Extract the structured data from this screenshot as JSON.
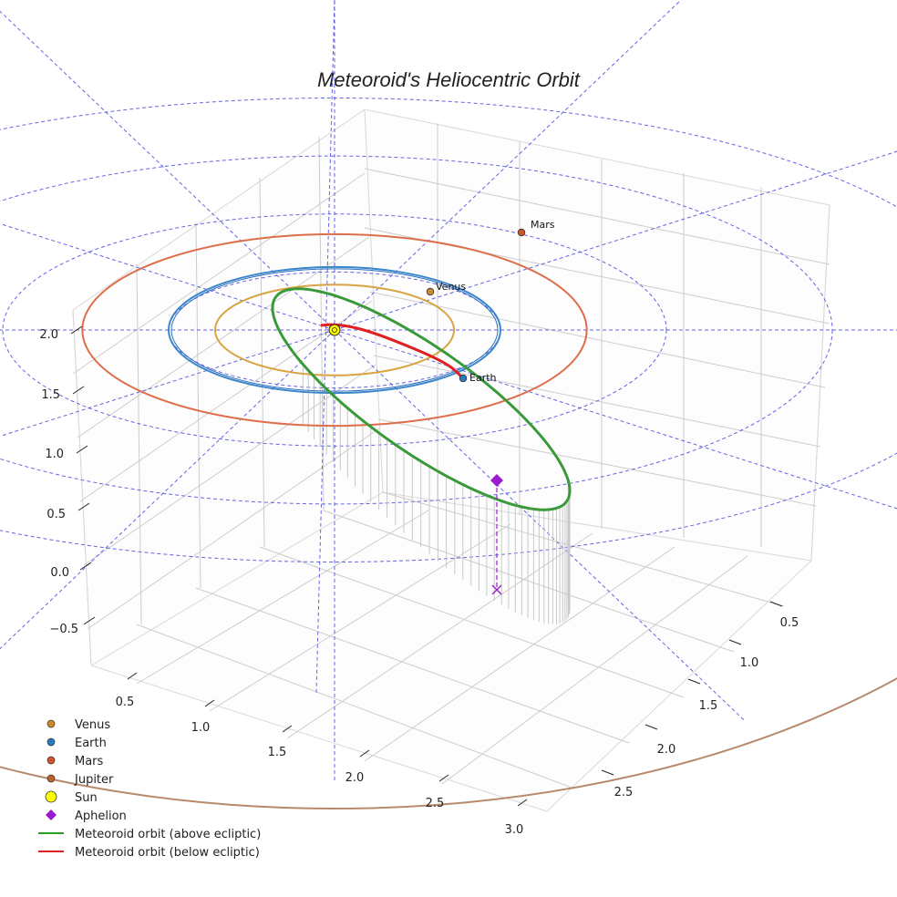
{
  "chart_data": {
    "type": "3d-orbit",
    "title": "Meteoroid's Heliocentric Orbit",
    "x_ticks": [
      "0.5",
      "1.0",
      "1.5",
      "2.0",
      "2.5",
      "3.0"
    ],
    "y_ticks": [
      "0.5",
      "1.0",
      "1.5",
      "2.0",
      "2.5"
    ],
    "z_ticks": [
      "2.0",
      "1.5",
      "1.0",
      "0.5",
      "0.0",
      "−0.5"
    ],
    "orbits": [
      {
        "name": "Venus",
        "radius_au": 0.72,
        "color": "#d9a441"
      },
      {
        "name": "Earth",
        "radius_au": 1.0,
        "color": "#3a86c8"
      },
      {
        "name": "Mars",
        "radius_au": 1.52,
        "color": "#de6d4a"
      },
      {
        "name": "Jupiter",
        "radius_au": 5.2,
        "color": "#b88a6b"
      }
    ],
    "planet_labels": [
      "Venus",
      "Earth",
      "Mars"
    ],
    "meteoroid": {
      "perihelion_au": 0.2,
      "aphelion_au": 2.5,
      "above_color": "#3a9a3a",
      "below_color": "#e02020"
    },
    "legend": [
      {
        "label": "Venus",
        "marker": "circle",
        "color": "#d08a2a"
      },
      {
        "label": "Earth",
        "marker": "circle",
        "color": "#2a7ac0"
      },
      {
        "label": "Mars",
        "marker": "circle",
        "color": "#d2522a"
      },
      {
        "label": "Jupiter",
        "marker": "circle",
        "color": "#c0602a"
      },
      {
        "label": "Sun",
        "marker": "sun",
        "color": "#ffff00"
      },
      {
        "label": "Aphelion",
        "marker": "diamond",
        "color": "#9a1ad0"
      },
      {
        "label": "Meteoroid orbit (above ecliptic)",
        "marker": "line",
        "color": "#2aa02a"
      },
      {
        "label": "Meteoroid orbit (below ecliptic)",
        "marker": "line",
        "color": "#e02020"
      }
    ]
  }
}
